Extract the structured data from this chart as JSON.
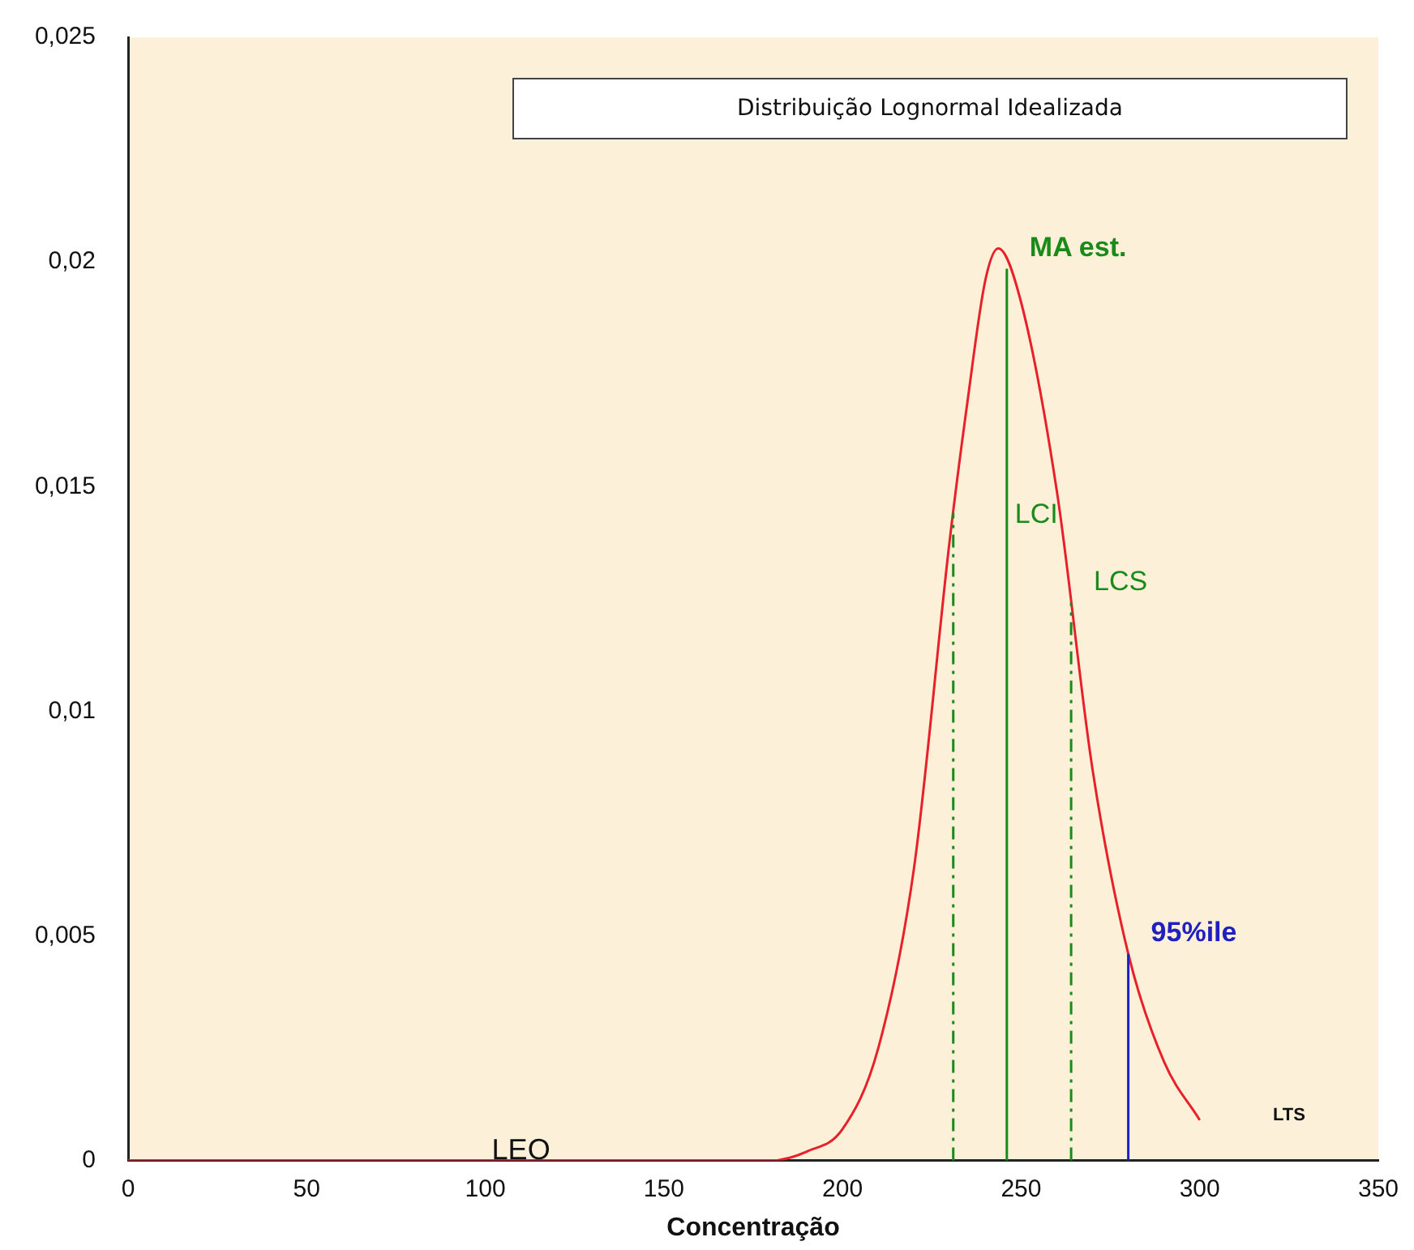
{
  "chart_data": {
    "type": "line",
    "title": "Distribuição Lognormal Idealizada",
    "xlabel": "Concentração",
    "series": [
      {
        "color": "#e8202a",
        "x": [
          0,
          50,
          100,
          150,
          180,
          190,
          200,
          210,
          220,
          230,
          235,
          240,
          243.6,
          250,
          260,
          270,
          280,
          290,
          300
        ],
        "values": [
          0,
          0,
          0,
          0,
          0,
          0.0002,
          0.0007,
          0.0025,
          0.0065,
          0.0138,
          0.0169,
          0.0196,
          0.0203,
          0.0191,
          0.0149,
          0.0087,
          0.0046,
          0.0022,
          0.0009
        ]
      }
    ],
    "xlim": [
      0,
      350
    ],
    "xticks": [
      0,
      50,
      100,
      150,
      200,
      250,
      300,
      350
    ],
    "ylim": [
      0,
      0.025
    ],
    "yticks": [
      {
        "value": 0,
        "label": "0"
      },
      {
        "value": 0.005,
        "label": "0,005"
      },
      {
        "value": 0.01,
        "label": "0,01"
      },
      {
        "value": 0.015,
        "label": "0,015"
      },
      {
        "value": 0.02,
        "label": "0,02"
      },
      {
        "value": 0.025,
        "label": "0,025"
      }
    ],
    "ref_lines": [
      {
        "axis": "x",
        "value": 246,
        "label": "MA est.",
        "color": "#1a8a1a",
        "line_style": "solid"
      },
      {
        "axis": "x",
        "value": 231,
        "label": "LCI",
        "color": "#1a8a1a",
        "line_style": "dashed"
      },
      {
        "axis": "x",
        "value": 264,
        "label": "LCS",
        "color": "#1a8a1a",
        "line_style": "dashed"
      },
      {
        "axis": "x",
        "value": 280,
        "label": "95%ile",
        "color": "#2020c0",
        "line_style": "solid"
      }
    ],
    "annotations": [
      {
        "text": "LEO",
        "x": 110,
        "y": 0
      },
      "LTS"
    ],
    "grid": false,
    "legend": false,
    "marker": "none",
    "line_style": "solid"
  }
}
